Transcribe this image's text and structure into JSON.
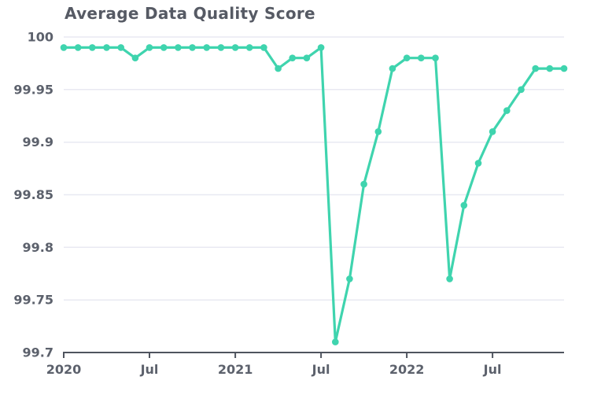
{
  "colors": {
    "line": "#3fd4ae",
    "marker": "#3fd4ae",
    "grid": "#e8e9f2",
    "axis": "#4f545e",
    "tick_label": "#5c616c",
    "title": "#565a64",
    "background": "#ffffff"
  },
  "chart_data": {
    "type": "line",
    "title": "Average Data Quality Score",
    "series_name": "Average Data Quality Score",
    "x": [
      "2020-01",
      "2020-02",
      "2020-03",
      "2020-04",
      "2020-05",
      "2020-06",
      "2020-07",
      "2020-08",
      "2020-09",
      "2020-10",
      "2020-11",
      "2020-12",
      "2021-01",
      "2021-02",
      "2021-03",
      "2021-04",
      "2021-05",
      "2021-06",
      "2021-07",
      "2021-08",
      "2021-09",
      "2021-10",
      "2021-11",
      "2021-12",
      "2022-01",
      "2022-02",
      "2022-03",
      "2022-04",
      "2022-05",
      "2022-06",
      "2022-07",
      "2022-08",
      "2022-09",
      "2022-10",
      "2022-11",
      "2022-12"
    ],
    "values": [
      99.99,
      99.99,
      99.99,
      99.99,
      99.99,
      99.98,
      99.99,
      99.99,
      99.99,
      99.99,
      99.99,
      99.99,
      99.99,
      99.99,
      99.99,
      99.97,
      99.98,
      99.98,
      99.99,
      99.71,
      99.77,
      99.86,
      99.91,
      99.97,
      99.98,
      99.98,
      99.98,
      99.77,
      99.84,
      99.88,
      99.91,
      99.93,
      99.95,
      99.97,
      99.97,
      99.97
    ],
    "ylim": [
      99.7,
      100
    ],
    "yticks": [
      {
        "value": 100,
        "label": "100"
      },
      {
        "value": 99.95,
        "label": "99.95"
      },
      {
        "value": 99.9,
        "label": "99.9"
      },
      {
        "value": 99.85,
        "label": "99.85"
      },
      {
        "value": 99.8,
        "label": "99.8"
      },
      {
        "value": 99.75,
        "label": "99.75"
      },
      {
        "value": 99.7,
        "label": "99.7"
      }
    ],
    "xticks": [
      {
        "index": 0,
        "label": "2020"
      },
      {
        "index": 6,
        "label": "Jul"
      },
      {
        "index": 12,
        "label": "2021"
      },
      {
        "index": 18,
        "label": "Jul"
      },
      {
        "index": 24,
        "label": "2022"
      },
      {
        "index": 30,
        "label": "Jul"
      }
    ],
    "grid": true,
    "legend": false,
    "marker": "circle"
  }
}
